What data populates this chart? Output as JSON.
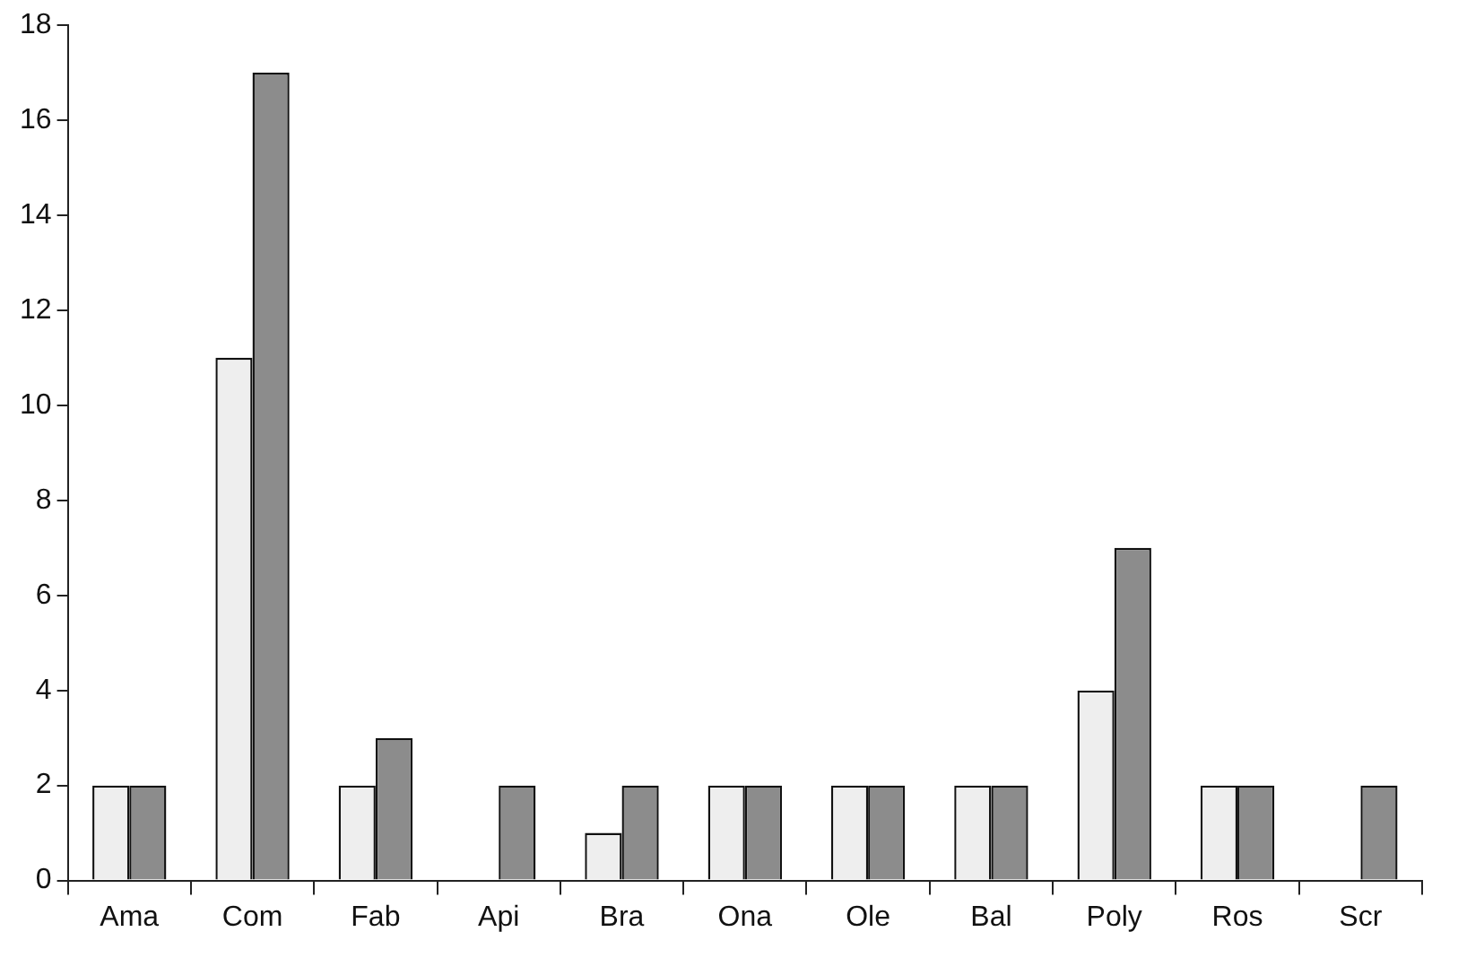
{
  "chart_data": {
    "type": "bar",
    "categories": [
      "Ama",
      "Com",
      "Fab",
      "Api",
      "Bra",
      "Ona",
      "Ole",
      "Bal",
      "Poly",
      "Ros",
      "Scr"
    ],
    "series": [
      {
        "color": "#eeeeee",
        "values": [
          2,
          11,
          2,
          0,
          1,
          2,
          2,
          2,
          4,
          2,
          0
        ]
      },
      {
        "color": "#8c8c8c",
        "values": [
          2,
          17,
          3,
          2,
          2,
          2,
          2,
          2,
          7,
          2,
          2
        ]
      }
    ],
    "ylim": [
      0,
      18
    ],
    "yticks": [
      0,
      2,
      4,
      6,
      8,
      10,
      12,
      14,
      16,
      18
    ],
    "grid": false,
    "legend": false
  }
}
